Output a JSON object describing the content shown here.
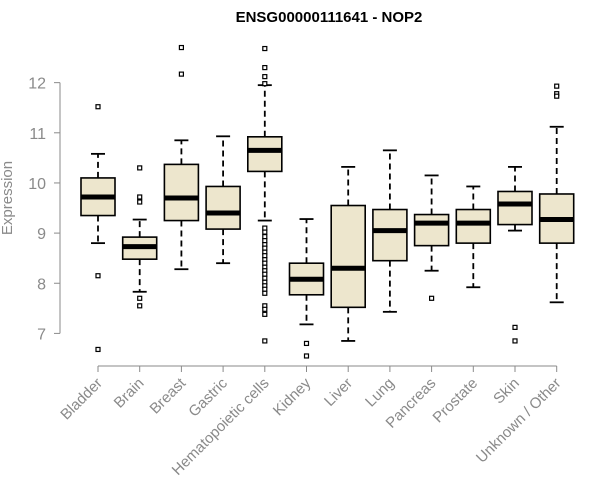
{
  "chart_data": {
    "type": "boxplot",
    "title": "ENSG00000111641 - NOP2",
    "xlabel": "",
    "ylabel": "Expression",
    "ylim": [
      6.35,
      12.95
    ],
    "yticks": [
      7,
      8,
      9,
      10,
      11,
      12
    ],
    "grid": false,
    "colors": {
      "box_fill": "#ede6cd",
      "stroke": "#000000",
      "axis": "#8a8a8a"
    },
    "categories": [
      "Bladder",
      "Brain",
      "Breast",
      "Gastric",
      "Hematopoietic cells",
      "Kidney",
      "Liver",
      "Lung",
      "Pancreas",
      "Prostate",
      "Skin",
      "Unknown / Other"
    ],
    "boxes": [
      {
        "category": "Bladder",
        "whisker_low": 8.8,
        "q1": 9.35,
        "median": 9.72,
        "q3": 10.1,
        "whisker_high": 10.58,
        "outliers": [
          11.52,
          8.15,
          6.68
        ]
      },
      {
        "category": "Brain",
        "whisker_low": 7.83,
        "q1": 8.48,
        "median": 8.73,
        "q3": 8.92,
        "whisker_high": 9.27,
        "outliers": [
          10.3,
          9.72,
          9.62,
          7.7,
          7.55
        ]
      },
      {
        "category": "Breast",
        "whisker_low": 8.28,
        "q1": 9.25,
        "median": 9.7,
        "q3": 10.37,
        "whisker_high": 10.85,
        "outliers": [
          12.7,
          12.17
        ]
      },
      {
        "category": "Gastric",
        "whisker_low": 8.4,
        "q1": 9.08,
        "median": 9.4,
        "q3": 9.93,
        "whisker_high": 10.93,
        "outliers": []
      },
      {
        "category": "Hematopoietic cells",
        "whisker_low": 9.25,
        "q1": 10.23,
        "median": 10.65,
        "q3": 10.92,
        "whisker_high": 11.95,
        "outliers": [
          12.68,
          12.3,
          12.12,
          11.98,
          9.1,
          9.02,
          8.93,
          8.85,
          8.77,
          8.7,
          8.62,
          8.55,
          8.47,
          8.4,
          8.32,
          8.25,
          8.18,
          8.1,
          8.02,
          7.95,
          7.88,
          7.8,
          7.55,
          7.48,
          7.38,
          6.85
        ]
      },
      {
        "category": "Kidney",
        "whisker_low": 7.18,
        "q1": 7.77,
        "median": 8.08,
        "q3": 8.4,
        "whisker_high": 9.28,
        "outliers": [
          6.8,
          6.55
        ]
      },
      {
        "category": "Liver",
        "whisker_low": 6.85,
        "q1": 7.52,
        "median": 8.3,
        "q3": 9.55,
        "whisker_high": 10.32,
        "outliers": []
      },
      {
        "category": "Lung",
        "whisker_low": 7.43,
        "q1": 8.45,
        "median": 9.05,
        "q3": 9.47,
        "whisker_high": 10.65,
        "outliers": []
      },
      {
        "category": "Pancreas",
        "whisker_low": 8.25,
        "q1": 8.75,
        "median": 9.2,
        "q3": 9.37,
        "whisker_high": 10.15,
        "outliers": [
          7.7
        ]
      },
      {
        "category": "Prostate",
        "whisker_low": 7.92,
        "q1": 8.8,
        "median": 9.2,
        "q3": 9.47,
        "whisker_high": 9.93,
        "outliers": []
      },
      {
        "category": "Skin",
        "whisker_low": 9.05,
        "q1": 9.17,
        "median": 9.58,
        "q3": 9.83,
        "whisker_high": 10.32,
        "outliers": [
          7.12,
          6.85
        ]
      },
      {
        "category": "Unknown / Other",
        "whisker_low": 7.62,
        "q1": 8.8,
        "median": 9.27,
        "q3": 9.78,
        "whisker_high": 11.12,
        "outliers": [
          11.93,
          11.78,
          11.73
        ]
      }
    ]
  }
}
